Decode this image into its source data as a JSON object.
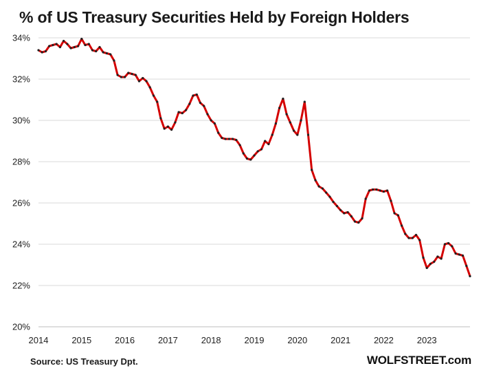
{
  "title": "% of US Treasury  Securities Held by Foreign Holders",
  "source": "Source: US Treasury  Dpt.",
  "brand": "WOLFSTREET.com",
  "chart_data": {
    "type": "line",
    "title": "% of US Treasury  Securities Held by Foreign Holders",
    "xlabel": "",
    "ylabel": "",
    "ylim": [
      20,
      34
    ],
    "xlim": [
      2014,
      2024
    ],
    "yticks": [
      "20%",
      "22%",
      "24%",
      "26%",
      "28%",
      "30%",
      "32%",
      "34%"
    ],
    "xticks": [
      "2014",
      "2015",
      "2016",
      "2017",
      "2018",
      "2019",
      "2020",
      "2021",
      "2022",
      "2023"
    ],
    "grid": "horizontal",
    "line_color": "#d40000",
    "marker_color": "#222222",
    "series": [
      {
        "values": [
          [
            2014.0,
            33.4
          ],
          [
            2014.083,
            33.3
          ],
          [
            2014.167,
            33.35
          ],
          [
            2014.25,
            33.6
          ],
          [
            2014.333,
            33.65
          ],
          [
            2014.417,
            33.7
          ],
          [
            2014.5,
            33.55
          ],
          [
            2014.583,
            33.85
          ],
          [
            2014.667,
            33.7
          ],
          [
            2014.75,
            33.5
          ],
          [
            2014.833,
            33.55
          ],
          [
            2014.917,
            33.6
          ],
          [
            2015.0,
            33.95
          ],
          [
            2015.083,
            33.65
          ],
          [
            2015.167,
            33.7
          ],
          [
            2015.25,
            33.4
          ],
          [
            2015.333,
            33.35
          ],
          [
            2015.417,
            33.55
          ],
          [
            2015.5,
            33.3
          ],
          [
            2015.583,
            33.25
          ],
          [
            2015.667,
            33.2
          ],
          [
            2015.75,
            32.9
          ],
          [
            2015.833,
            32.2
          ],
          [
            2015.917,
            32.1
          ],
          [
            2016.0,
            32.1
          ],
          [
            2016.083,
            32.3
          ],
          [
            2016.167,
            32.25
          ],
          [
            2016.25,
            32.2
          ],
          [
            2016.333,
            31.9
          ],
          [
            2016.417,
            32.05
          ],
          [
            2016.5,
            31.9
          ],
          [
            2016.583,
            31.6
          ],
          [
            2016.667,
            31.2
          ],
          [
            2016.75,
            30.9
          ],
          [
            2016.833,
            30.1
          ],
          [
            2016.917,
            29.6
          ],
          [
            2017.0,
            29.7
          ],
          [
            2017.083,
            29.55
          ],
          [
            2017.167,
            29.9
          ],
          [
            2017.25,
            30.4
          ],
          [
            2017.333,
            30.35
          ],
          [
            2017.417,
            30.5
          ],
          [
            2017.5,
            30.8
          ],
          [
            2017.583,
            31.2
          ],
          [
            2017.667,
            31.25
          ],
          [
            2017.75,
            30.85
          ],
          [
            2017.833,
            30.7
          ],
          [
            2017.917,
            30.3
          ],
          [
            2018.0,
            30.0
          ],
          [
            2018.083,
            29.85
          ],
          [
            2018.167,
            29.4
          ],
          [
            2018.25,
            29.15
          ],
          [
            2018.333,
            29.1
          ],
          [
            2018.417,
            29.1
          ],
          [
            2018.5,
            29.1
          ],
          [
            2018.583,
            29.05
          ],
          [
            2018.667,
            28.8
          ],
          [
            2018.75,
            28.4
          ],
          [
            2018.833,
            28.15
          ],
          [
            2018.917,
            28.1
          ],
          [
            2019.0,
            28.3
          ],
          [
            2019.083,
            28.5
          ],
          [
            2019.167,
            28.6
          ],
          [
            2019.25,
            29.0
          ],
          [
            2019.333,
            28.85
          ],
          [
            2019.417,
            29.3
          ],
          [
            2019.5,
            29.85
          ],
          [
            2019.583,
            30.6
          ],
          [
            2019.667,
            31.05
          ],
          [
            2019.75,
            30.3
          ],
          [
            2019.833,
            29.9
          ],
          [
            2019.917,
            29.5
          ],
          [
            2020.0,
            29.3
          ],
          [
            2020.083,
            30.0
          ],
          [
            2020.167,
            30.9
          ],
          [
            2020.25,
            29.3
          ],
          [
            2020.333,
            27.6
          ],
          [
            2020.417,
            27.1
          ],
          [
            2020.5,
            26.8
          ],
          [
            2020.583,
            26.7
          ],
          [
            2020.667,
            26.5
          ],
          [
            2020.75,
            26.3
          ],
          [
            2020.833,
            26.05
          ],
          [
            2020.917,
            25.85
          ],
          [
            2021.0,
            25.65
          ],
          [
            2021.083,
            25.5
          ],
          [
            2021.167,
            25.55
          ],
          [
            2021.25,
            25.35
          ],
          [
            2021.333,
            25.1
          ],
          [
            2021.417,
            25.05
          ],
          [
            2021.5,
            25.25
          ],
          [
            2021.583,
            26.2
          ],
          [
            2021.667,
            26.6
          ],
          [
            2021.75,
            26.65
          ],
          [
            2021.833,
            26.65
          ],
          [
            2021.917,
            26.6
          ],
          [
            2022.0,
            26.55
          ],
          [
            2022.083,
            26.6
          ],
          [
            2022.167,
            26.1
          ],
          [
            2022.25,
            25.5
          ],
          [
            2022.333,
            25.4
          ],
          [
            2022.417,
            24.9
          ],
          [
            2022.5,
            24.5
          ],
          [
            2022.583,
            24.3
          ],
          [
            2022.667,
            24.3
          ],
          [
            2022.75,
            24.45
          ],
          [
            2022.833,
            24.2
          ],
          [
            2022.917,
            23.35
          ],
          [
            2023.0,
            22.85
          ],
          [
            2023.083,
            23.05
          ],
          [
            2023.167,
            23.15
          ],
          [
            2023.25,
            23.4
          ],
          [
            2023.333,
            23.3
          ],
          [
            2023.417,
            24.0
          ],
          [
            2023.5,
            24.05
          ],
          [
            2023.583,
            23.9
          ],
          [
            2023.667,
            23.55
          ],
          [
            2023.75,
            23.5
          ],
          [
            2023.833,
            23.45
          ],
          [
            2023.917,
            22.95
          ],
          [
            2024.0,
            22.45
          ]
        ]
      }
    ]
  }
}
